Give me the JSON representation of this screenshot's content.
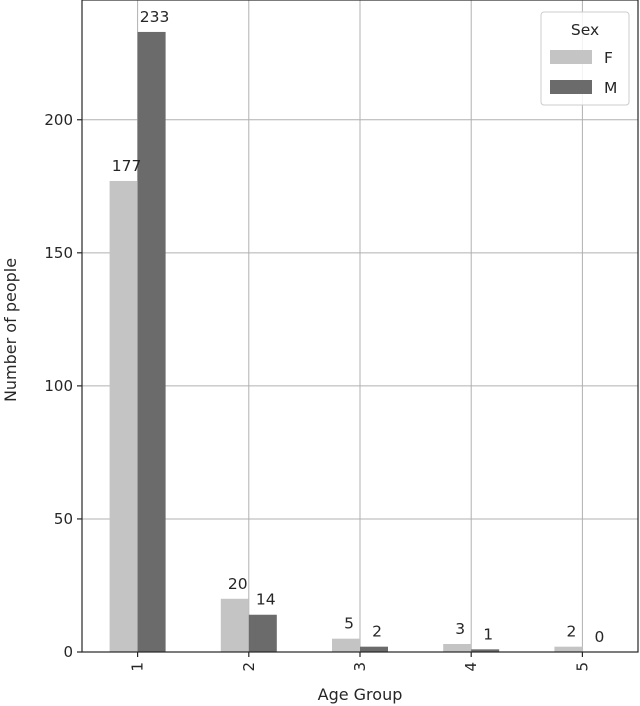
{
  "chart_data": {
    "type": "bar",
    "categories": [
      "1",
      "2",
      "3",
      "4",
      "5"
    ],
    "series": [
      {
        "name": "F",
        "values": [
          177,
          20,
          5,
          3,
          2
        ],
        "color": "#c4c4c4"
      },
      {
        "name": "M",
        "values": [
          233,
          14,
          2,
          1,
          0
        ],
        "color": "#6b6b6b"
      }
    ],
    "xlabel": "Age Group",
    "ylabel": "Number of people",
    "ylim": [
      0,
      245
    ],
    "yticks": [
      0,
      50,
      100,
      150,
      200
    ],
    "grid": true,
    "legend": {
      "title": "Sex",
      "placement": "top-right"
    },
    "data_labels": true
  }
}
